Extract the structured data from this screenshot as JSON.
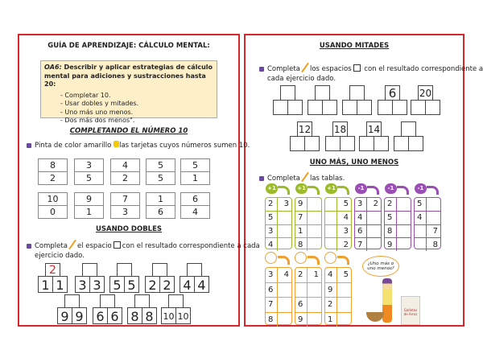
{
  "left": {
    "title": "GUÍA DE APRENDIZAJE: CÁLCULO MENTAL:",
    "objective": {
      "code": "OA6:",
      "text": " Describir y aplicar estrategias de cálculo mental para adiciones y sustracciones hasta 20:",
      "items": [
        "- Completar 10.",
        "- Usar dobles y mitades.",
        "- Uno más uno menos.",
        "- Dos más dos menos\"."
      ]
    },
    "section1": {
      "title": "COMPLETANDO EL NÚMERO 10",
      "instruction_a": "Pinta de color amarillo",
      "instruction_b": "las tarjetas cuyos números sumen 10.",
      "cards": [
        [
          "8",
          "2"
        ],
        [
          "3",
          "5"
        ],
        [
          "4",
          "2"
        ],
        [
          "5",
          "5"
        ],
        [
          "5",
          "1"
        ],
        [
          "10",
          "0"
        ],
        [
          "9",
          "1"
        ],
        [
          "7",
          "3"
        ],
        [
          "1",
          "6"
        ],
        [
          "6",
          "4"
        ]
      ]
    },
    "section2": {
      "title": "USANDO DOBLES",
      "instruction_a": "Completa",
      "instruction_b": "el espacio",
      "instruction_c": "con el resultado correspondiente a cada",
      "instruction_d": "ejercicio dado.",
      "items": [
        {
          "top": "2",
          "a": "1",
          "b": "1"
        },
        {
          "top": "",
          "a": "3",
          "b": "3"
        },
        {
          "top": "",
          "a": "5",
          "b": "5"
        },
        {
          "top": "",
          "a": "2",
          "b": "2"
        },
        {
          "top": "",
          "a": "4",
          "b": "4"
        },
        {
          "top": "",
          "a": "9",
          "b": "9"
        },
        {
          "top": "",
          "a": "6",
          "b": "6"
        },
        {
          "top": "",
          "a": "8",
          "b": "8"
        },
        {
          "top": "",
          "a": "10",
          "b": "10"
        }
      ]
    }
  },
  "right": {
    "section3": {
      "title": "USANDO MITADES",
      "instruction_a": "Completa",
      "instruction_b": "los espacios",
      "instruction_c": "con el resultado correspondiente a",
      "instruction_d": "cada ejercicio dado.",
      "items": [
        {
          "top": ""
        },
        {
          "top": ""
        },
        {
          "top": ""
        },
        {
          "top": "6"
        },
        {
          "top": "20"
        },
        {
          "top": "12"
        },
        {
          "top": "18"
        },
        {
          "top": "14"
        },
        {
          "top": ""
        }
      ]
    },
    "section4": {
      "title": "UNO MÁS, UNO MENOS",
      "instruction_a": "Completa",
      "instruction_b": "las tablas.",
      "tables": [
        {
          "op": "+1",
          "color": "#9bbb2a",
          "rows": [
            [
              "2",
              "3"
            ],
            [
              "5",
              ""
            ],
            [
              "3",
              ""
            ],
            [
              "4",
              ""
            ]
          ]
        },
        {
          "op": "+1",
          "color": "#9bbb2a",
          "rows": [
            [
              "9",
              ""
            ],
            [
              "7",
              ""
            ],
            [
              "1",
              ""
            ],
            [
              "8",
              ""
            ]
          ]
        },
        {
          "op": "+1",
          "color": "#9bbb2a",
          "rows": [
            [
              "",
              "5"
            ],
            [
              "",
              "4"
            ],
            [
              "",
              "3"
            ],
            [
              "",
              "2"
            ]
          ]
        },
        {
          "op": "-1",
          "color": "#9b4fb5",
          "rows": [
            [
              "3",
              "2"
            ],
            [
              "4",
              ""
            ],
            [
              "6",
              ""
            ],
            [
              "7",
              ""
            ]
          ]
        },
        {
          "op": "-1",
          "color": "#9b4fb5",
          "rows": [
            [
              "2",
              ""
            ],
            [
              "5",
              ""
            ],
            [
              "8",
              ""
            ],
            [
              "9",
              ""
            ]
          ]
        },
        {
          "op": "-1",
          "color": "#9b4fb5",
          "rows": [
            [
              "5",
              ""
            ],
            [
              "4",
              ""
            ],
            [
              "",
              "7"
            ],
            [
              "",
              "8"
            ]
          ]
        },
        {
          "op": "",
          "color": "#f0a030",
          "rows": [
            [
              "3",
              "4"
            ],
            [
              "6",
              ""
            ],
            [
              "7",
              ""
            ],
            [
              "8",
              ""
            ]
          ]
        },
        {
          "op": "",
          "color": "#f0a030",
          "rows": [
            [
              "2",
              "1"
            ],
            [
              "",
              ""
            ],
            [
              "6",
              ""
            ],
            [
              "9",
              ""
            ]
          ]
        },
        {
          "op": "",
          "color": "#f0a030",
          "rows": [
            [
              "4",
              "5"
            ],
            [
              "9",
              ""
            ],
            [
              "2",
              ""
            ],
            [
              "1",
              ""
            ]
          ]
        }
      ],
      "bubble": "¿Uno más o uno menos?",
      "box_label": "Galletas de Arroz"
    }
  }
}
